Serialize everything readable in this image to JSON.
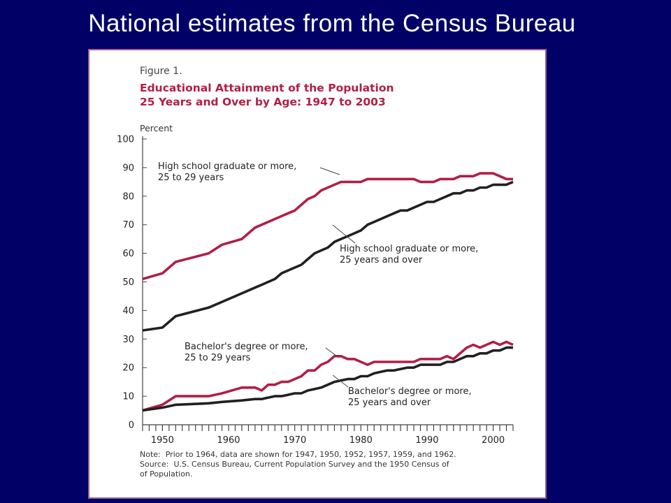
{
  "slide": {
    "title": "National estimates from the Census Bureau"
  },
  "figure": {
    "label": "Figure 1.",
    "title_line1": "Educational Attainment of the Population",
    "title_line2": "25 Years and Over by Age:  1947 to 2003",
    "unit": "Percent",
    "note_line1": "Note:  Prior to 1964, data are shown for 1947, 1950, 1952, 1957, 1959, and 1962.",
    "note_line2": "Source:  U.S. Census Bureau, Current Population Survey and the 1950 Census of",
    "note_line3": "of Population."
  },
  "colors": {
    "background": "#000066",
    "series_25_29": "#b21e45",
    "series_25_over": "#231f20",
    "title": "#b21e45"
  },
  "chart_data": {
    "type": "line",
    "xlim": [
      1947,
      2003
    ],
    "ylim": [
      0,
      100
    ],
    "x_ticks": [
      1950,
      1960,
      1970,
      1980,
      1990,
      2000
    ],
    "x_tick_labels": [
      "1950",
      "1960",
      "1970",
      "1980",
      "1990",
      "2000"
    ],
    "y_ticks": [
      0,
      10,
      20,
      30,
      40,
      50,
      60,
      70,
      80,
      90,
      100
    ],
    "y_tick_labels": [
      "0",
      "10",
      "20",
      "30",
      "40",
      "50",
      "60",
      "70",
      "80",
      "90",
      "100"
    ],
    "ylabel": "Percent",
    "grid": false,
    "series": [
      {
        "key": "hs_25_29",
        "color": "#b21e45",
        "label_line1": "High school graduate or more,",
        "label_line2": "25 to 29 years",
        "x": [
          1947,
          1950,
          1952,
          1957,
          1959,
          1962,
          1964,
          1965,
          1966,
          1967,
          1968,
          1969,
          1970,
          1971,
          1972,
          1973,
          1974,
          1975,
          1976,
          1977,
          1978,
          1979,
          1980,
          1981,
          1982,
          1983,
          1984,
          1985,
          1986,
          1987,
          1988,
          1989,
          1990,
          1991,
          1992,
          1993,
          1994,
          1995,
          1996,
          1997,
          1998,
          1999,
          2000,
          2001,
          2002,
          2003
        ],
        "values": [
          51,
          53,
          57,
          60,
          63,
          65,
          69,
          70,
          71,
          72,
          73,
          74,
          75,
          77,
          79,
          80,
          82,
          83,
          84,
          85,
          85,
          85,
          85,
          86,
          86,
          86,
          86,
          86,
          86,
          86,
          86,
          85,
          85,
          85,
          86,
          86,
          86,
          87,
          87,
          87,
          88,
          88,
          88,
          87,
          86,
          86
        ]
      },
      {
        "key": "hs_25_over",
        "color": "#231f20",
        "label_line1": "High school graduate or more,",
        "label_line2": "25 years and over",
        "x": [
          1947,
          1950,
          1952,
          1957,
          1959,
          1962,
          1964,
          1965,
          1966,
          1967,
          1968,
          1969,
          1970,
          1971,
          1972,
          1973,
          1974,
          1975,
          1976,
          1977,
          1978,
          1979,
          1980,
          1981,
          1982,
          1983,
          1984,
          1985,
          1986,
          1987,
          1988,
          1989,
          1990,
          1991,
          1992,
          1993,
          1994,
          1995,
          1996,
          1997,
          1998,
          1999,
          2000,
          2001,
          2002,
          2003
        ],
        "values": [
          33,
          34,
          38,
          41,
          43,
          46,
          48,
          49,
          50,
          51,
          53,
          54,
          55,
          56,
          58,
          60,
          61,
          62,
          64,
          65,
          66,
          67,
          68,
          70,
          71,
          72,
          73,
          74,
          75,
          75,
          76,
          77,
          78,
          78,
          79,
          80,
          81,
          81,
          82,
          82,
          83,
          83,
          84,
          84,
          84,
          85
        ]
      },
      {
        "key": "ba_25_29",
        "color": "#b21e45",
        "label_line1": "Bachelor's degree or more,",
        "label_line2": "25 to 29 years",
        "x": [
          1947,
          1950,
          1952,
          1957,
          1959,
          1962,
          1964,
          1965,
          1966,
          1967,
          1968,
          1969,
          1970,
          1971,
          1972,
          1973,
          1974,
          1975,
          1976,
          1977,
          1978,
          1979,
          1980,
          1981,
          1982,
          1983,
          1984,
          1985,
          1986,
          1987,
          1988,
          1989,
          1990,
          1991,
          1992,
          1993,
          1994,
          1995,
          1996,
          1997,
          1998,
          1999,
          2000,
          2001,
          2002,
          2003
        ],
        "values": [
          5,
          7,
          10,
          10,
          11,
          13,
          13,
          12,
          14,
          14,
          15,
          15,
          16,
          17,
          19,
          19,
          21,
          22,
          24,
          24,
          23,
          23,
          22,
          21,
          22,
          22,
          22,
          22,
          22,
          22,
          22,
          23,
          23,
          23,
          23,
          24,
          23,
          25,
          27,
          28,
          27,
          28,
          29,
          28,
          29,
          28
        ]
      },
      {
        "key": "ba_25_over",
        "color": "#231f20",
        "label_line1": "Bachelor's degree or more,",
        "label_line2": "25 years and over",
        "x": [
          1947,
          1950,
          1952,
          1957,
          1959,
          1962,
          1964,
          1965,
          1966,
          1967,
          1968,
          1969,
          1970,
          1971,
          1972,
          1973,
          1974,
          1975,
          1976,
          1977,
          1978,
          1979,
          1980,
          1981,
          1982,
          1983,
          1984,
          1985,
          1986,
          1987,
          1988,
          1989,
          1990,
          1991,
          1992,
          1993,
          1994,
          1995,
          1996,
          1997,
          1998,
          1999,
          2000,
          2001,
          2002,
          2003
        ],
        "values": [
          5,
          6,
          7,
          7.5,
          8,
          8.5,
          9,
          9,
          9.5,
          10,
          10,
          10.5,
          11,
          11,
          12,
          12.5,
          13,
          14,
          15,
          15.5,
          16,
          16,
          17,
          17,
          18,
          18.5,
          19,
          19,
          19.5,
          20,
          20,
          21,
          21,
          21,
          21,
          22,
          22,
          23,
          24,
          24,
          25,
          25,
          26,
          26,
          27,
          27
        ]
      }
    ]
  }
}
